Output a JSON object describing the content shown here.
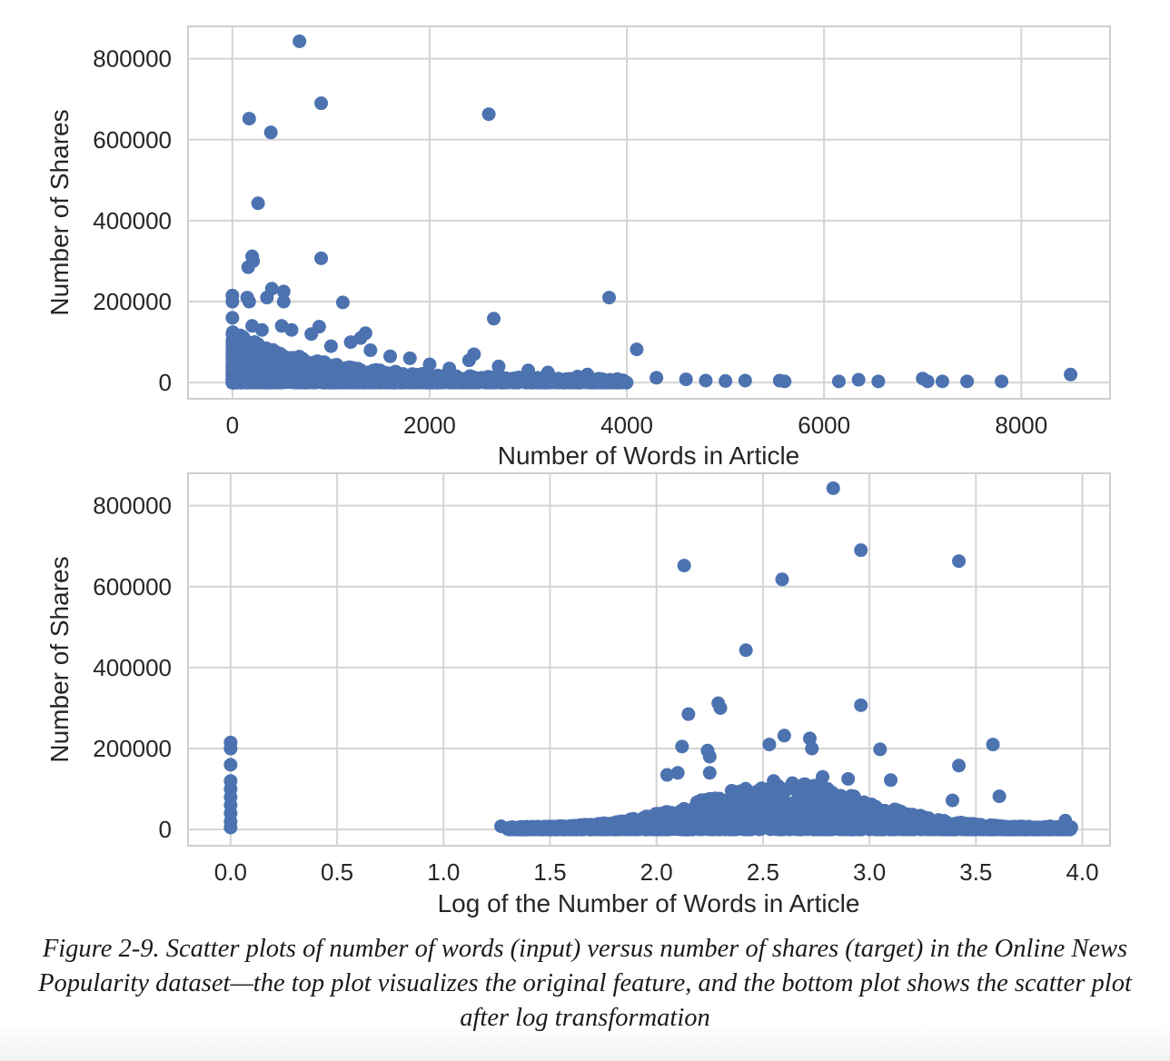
{
  "caption": "Figure 2-9. Scatter plots of number of words (input) versus number of shares (target) in the Online News Popularity dataset—the top plot visualizes the original feature, and the bottom plot shows the scatter plot after log transformation",
  "chart_data": [
    {
      "type": "scatter",
      "xlabel": "Number of Words in Article",
      "ylabel": "Number of Shares",
      "xlim": [
        -450,
        8900
      ],
      "ylim": [
        -40000,
        880000
      ],
      "xticks": [
        0,
        2000,
        4000,
        6000,
        8000
      ],
      "yticks": [
        0,
        200000,
        400000,
        600000,
        800000
      ],
      "grid": true,
      "color": "#4c72b0",
      "points": [
        [
          680,
          843000
        ],
        [
          900,
          690000
        ],
        [
          2600,
          663000
        ],
        [
          170,
          652000
        ],
        [
          390,
          618000
        ],
        [
          260,
          443000
        ],
        [
          200,
          312000
        ],
        [
          210,
          300000
        ],
        [
          160,
          285000
        ],
        [
          900,
          307000
        ],
        [
          0,
          215000
        ],
        [
          0,
          200000
        ],
        [
          0,
          160000
        ],
        [
          150,
          210000
        ],
        [
          170,
          200000
        ],
        [
          350,
          210000
        ],
        [
          400,
          232000
        ],
        [
          520,
          225000
        ],
        [
          520,
          200000
        ],
        [
          1120,
          198000
        ],
        [
          2650,
          158000
        ],
        [
          3820,
          210000
        ],
        [
          4100,
          82000
        ],
        [
          2450,
          70000
        ],
        [
          2400,
          55000
        ],
        [
          1350,
          122000
        ],
        [
          1300,
          110000
        ],
        [
          1200,
          100000
        ],
        [
          880,
          138000
        ],
        [
          800,
          120000
        ],
        [
          600,
          130000
        ],
        [
          500,
          140000
        ],
        [
          300,
          130000
        ],
        [
          200,
          140000
        ],
        [
          0,
          120000
        ],
        [
          0,
          100000
        ],
        [
          1400,
          80000
        ],
        [
          1600,
          65000
        ],
        [
          1800,
          60000
        ],
        [
          1000,
          90000
        ],
        [
          2000,
          45000
        ],
        [
          2200,
          35000
        ],
        [
          2700,
          40000
        ],
        [
          3000,
          30000
        ],
        [
          3200,
          25000
        ],
        [
          3500,
          15000
        ],
        [
          3600,
          20000
        ],
        [
          4300,
          12000
        ],
        [
          4600,
          8000
        ],
        [
          4800,
          5000
        ],
        [
          5000,
          4000
        ],
        [
          5200,
          5000
        ],
        [
          5550,
          5000
        ],
        [
          5600,
          3000
        ],
        [
          6150,
          3000
        ],
        [
          6350,
          7000
        ],
        [
          6550,
          3000
        ],
        [
          7000,
          10000
        ],
        [
          7050,
          3000
        ],
        [
          7200,
          3000
        ],
        [
          7450,
          3000
        ],
        [
          7800,
          3000
        ],
        [
          8500,
          20000
        ]
      ]
    },
    {
      "type": "scatter",
      "xlabel": "Log of the Number of Words in Article",
      "ylabel": "Number of Shares",
      "xlim": [
        -0.2,
        4.13
      ],
      "ylim": [
        -40000,
        880000
      ],
      "xticks": [
        0.0,
        0.5,
        1.0,
        1.5,
        2.0,
        2.5,
        3.0,
        3.5,
        4.0
      ],
      "xticklabels": [
        "0.0",
        "0.5",
        "1.0",
        "1.5",
        "2.0",
        "2.5",
        "3.0",
        "3.5",
        "4.0"
      ],
      "yticks": [
        0,
        200000,
        400000,
        600000,
        800000
      ],
      "grid": true,
      "color": "#4c72b0",
      "points": [
        [
          2.83,
          843000
        ],
        [
          2.96,
          690000
        ],
        [
          3.42,
          663000
        ],
        [
          2.13,
          652000
        ],
        [
          2.59,
          618000
        ],
        [
          2.42,
          443000
        ],
        [
          2.29,
          312000
        ],
        [
          2.3,
          300000
        ],
        [
          2.15,
          285000
        ],
        [
          2.96,
          307000
        ],
        [
          0.0,
          215000
        ],
        [
          0.0,
          200000
        ],
        [
          0.0,
          160000
        ],
        [
          0.0,
          120000
        ],
        [
          0.0,
          100000
        ],
        [
          0.0,
          80000
        ],
        [
          0.0,
          60000
        ],
        [
          0.0,
          40000
        ],
        [
          0.0,
          20000
        ],
        [
          0.0,
          5000
        ],
        [
          2.12,
          205000
        ],
        [
          2.24,
          195000
        ],
        [
          2.25,
          180000
        ],
        [
          2.53,
          210000
        ],
        [
          2.6,
          232000
        ],
        [
          2.72,
          225000
        ],
        [
          2.73,
          200000
        ],
        [
          3.05,
          198000
        ],
        [
          3.42,
          158000
        ],
        [
          3.58,
          210000
        ],
        [
          3.61,
          82000
        ],
        [
          3.39,
          72000
        ],
        [
          2.05,
          135000
        ],
        [
          2.1,
          140000
        ],
        [
          2.25,
          140000
        ],
        [
          2.55,
          120000
        ],
        [
          2.78,
          130000
        ],
        [
          2.9,
          125000
        ],
        [
          3.1,
          122000
        ],
        [
          1.27,
          8000
        ],
        [
          1.35,
          5000
        ],
        [
          1.45,
          6000
        ],
        [
          1.6,
          4000
        ],
        [
          1.75,
          5000
        ],
        [
          1.85,
          20000
        ],
        [
          3.92,
          22000
        ],
        [
          3.85,
          8000
        ],
        [
          3.8,
          4000
        ],
        [
          3.7,
          5000
        ]
      ],
      "dense_band": {
        "x_range": [
          1.3,
          3.95
        ],
        "y_range": [
          0,
          110000
        ]
      }
    }
  ]
}
